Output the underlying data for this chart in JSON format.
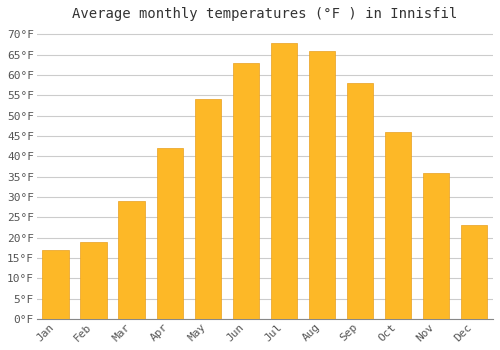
{
  "title": "Average monthly temperatures (°F ) in Innisfil",
  "months": [
    "Jan",
    "Feb",
    "Mar",
    "Apr",
    "May",
    "Jun",
    "Jul",
    "Aug",
    "Sep",
    "Oct",
    "Nov",
    "Dec"
  ],
  "values": [
    17,
    19,
    29,
    42,
    54,
    63,
    68,
    66,
    58,
    46,
    36,
    23
  ],
  "bar_color": "#FDB827",
  "bar_edge_color": "#E8A020",
  "background_color": "#FFFFFF",
  "plot_bg_color": "#FFFFFF",
  "grid_color": "#CCCCCC",
  "ylim": [
    0,
    72
  ],
  "yticks": [
    0,
    5,
    10,
    15,
    20,
    25,
    30,
    35,
    40,
    45,
    50,
    55,
    60,
    65,
    70
  ],
  "title_fontsize": 10,
  "tick_fontsize": 8,
  "tick_font": "monospace"
}
